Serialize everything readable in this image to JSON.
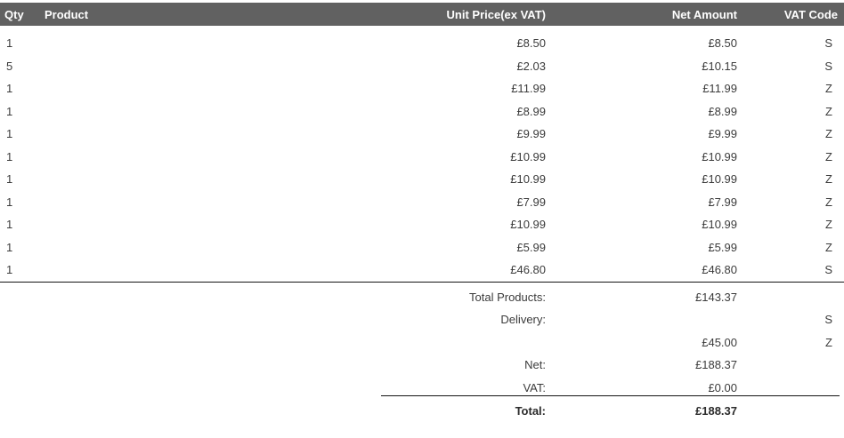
{
  "table": {
    "headers": [
      "Qty",
      "Product",
      "Unit Price(ex VAT)",
      "Net Amount",
      "VAT Code"
    ],
    "rows": [
      {
        "qty": "1",
        "product": "",
        "unit_price": "£8.50",
        "net_amount": "£8.50",
        "vat_code": "S"
      },
      {
        "qty": "5",
        "product": "",
        "unit_price": "£2.03",
        "net_amount": "£10.15",
        "vat_code": "S"
      },
      {
        "qty": "1",
        "product": "",
        "unit_price": "£11.99",
        "net_amount": "£11.99",
        "vat_code": "Z"
      },
      {
        "qty": "1",
        "product": "",
        "unit_price": "£8.99",
        "net_amount": "£8.99",
        "vat_code": "Z"
      },
      {
        "qty": "1",
        "product": "",
        "unit_price": "£9.99",
        "net_amount": "£9.99",
        "vat_code": "Z"
      },
      {
        "qty": "1",
        "product": "",
        "unit_price": "£10.99",
        "net_amount": "£10.99",
        "vat_code": "Z"
      },
      {
        "qty": "1",
        "product": "",
        "unit_price": "£10.99",
        "net_amount": "£10.99",
        "vat_code": "Z"
      },
      {
        "qty": "1",
        "product": "",
        "unit_price": "£7.99",
        "net_amount": "£7.99",
        "vat_code": "Z"
      },
      {
        "qty": "1",
        "product": "",
        "unit_price": "£10.99",
        "net_amount": "£10.99",
        "vat_code": "Z"
      },
      {
        "qty": "1",
        "product": "",
        "unit_price": "£5.99",
        "net_amount": "£5.99",
        "vat_code": "Z"
      },
      {
        "qty": "1",
        "product": "",
        "unit_price": "£46.80",
        "net_amount": "£46.80",
        "vat_code": "S"
      }
    ]
  },
  "totals": {
    "rows": [
      {
        "label": "Total Products:",
        "amount": "£143.37",
        "vat_code": "",
        "bold": false
      },
      {
        "label": "Delivery:",
        "amount": "",
        "vat_code": "S",
        "bold": false
      },
      {
        "label": "",
        "amount": "£45.00",
        "vat_code": "Z",
        "bold": false
      },
      {
        "label": "Net:",
        "amount": "£188.37",
        "vat_code": "",
        "bold": false
      },
      {
        "label": "VAT:",
        "amount": "£0.00",
        "vat_code": "",
        "bold": false
      },
      {
        "label": "Total:",
        "amount": "£188.37",
        "vat_code": "",
        "bold": true
      }
    ]
  },
  "colors": {
    "header_bg": "#616161",
    "header_text": "#ffffff",
    "body_text": "#3b3b3b",
    "rule": "#141414"
  }
}
